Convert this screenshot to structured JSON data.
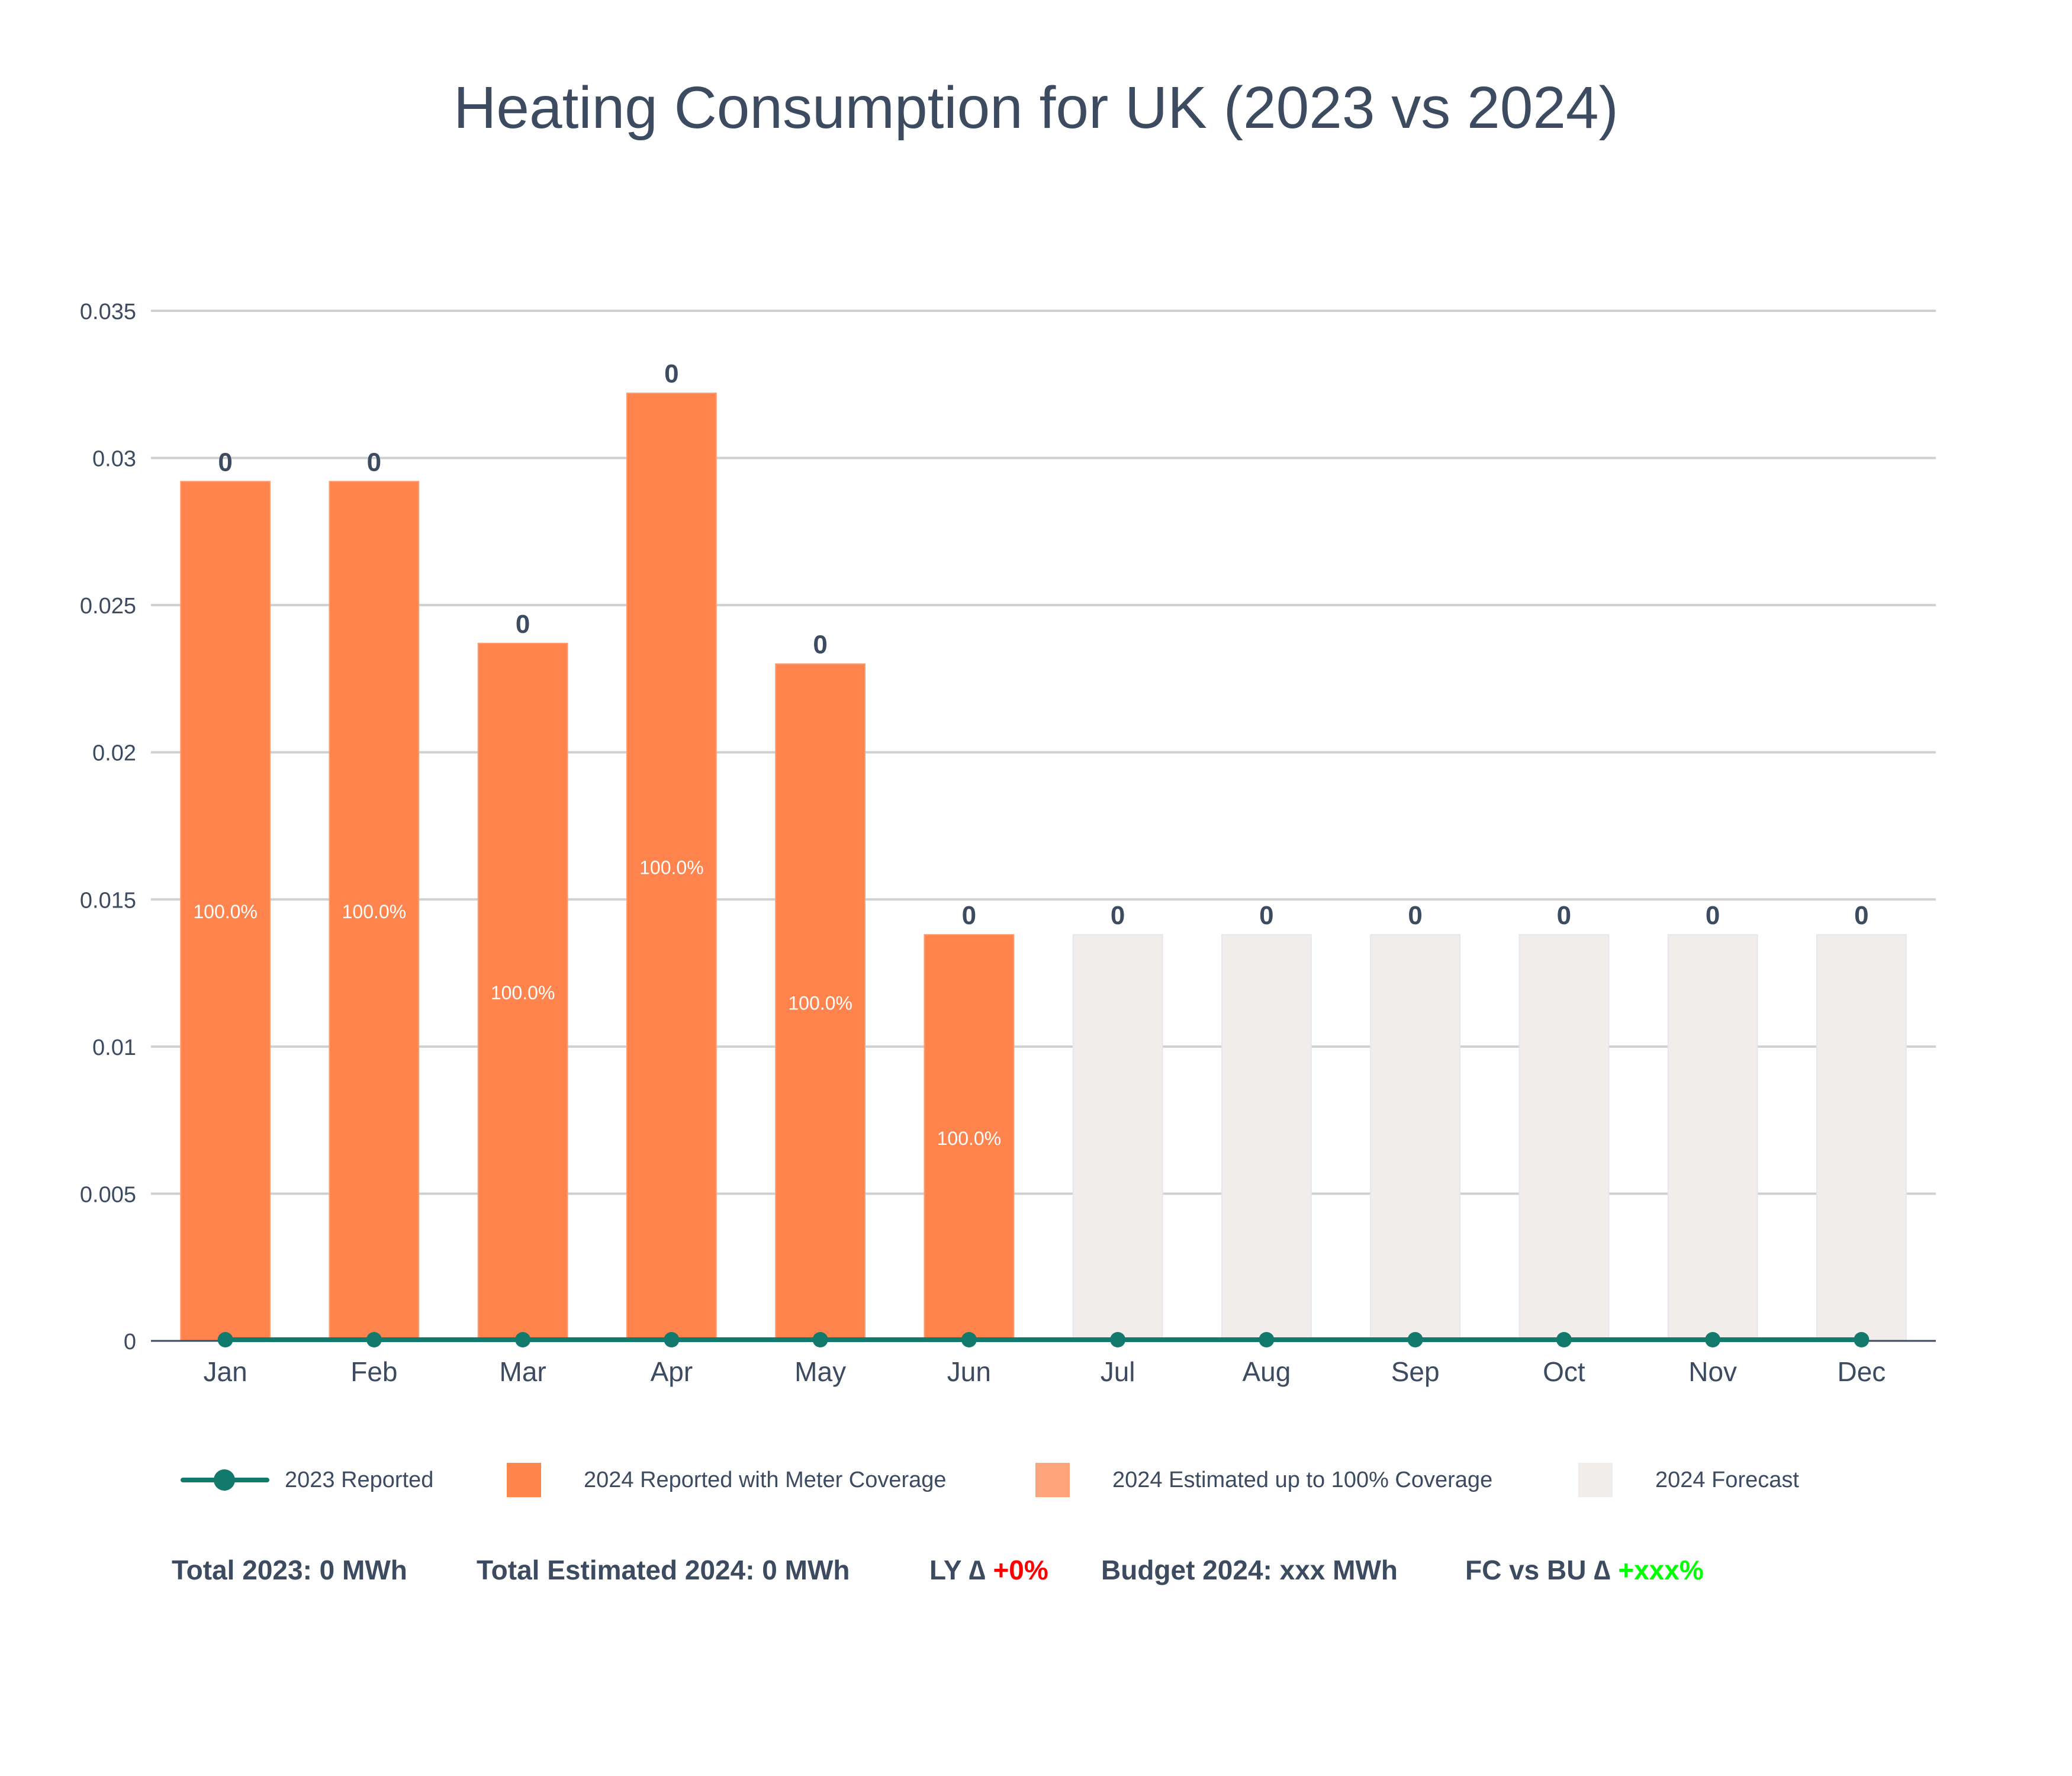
{
  "title": "Heating Consumption for UK (2023 vs 2024)",
  "colors": {
    "reported_2024": "#ff834d",
    "estimated_2024": "#fda47d",
    "forecast_2024": "#f1edea",
    "reported_2023": "#117a6d",
    "axis_text": "#3d4b60",
    "grid": "#d0d0d0",
    "positive": "#ff0000",
    "fc_positive": "#00ff00"
  },
  "chart_data": {
    "type": "bar",
    "title": "Heating Consumption for UK (2023 vs 2024)",
    "xlabel": "",
    "ylabel": "",
    "ylim": [
      0,
      0.035
    ],
    "y_ticks": [
      "0",
      "0.005",
      "0.01",
      "0.015",
      "0.02",
      "0.025",
      "0.03",
      "0.035"
    ],
    "y_tick_values": [
      0,
      0.005,
      0.01,
      0.015,
      0.02,
      0.025,
      0.03,
      0.035
    ],
    "categories": [
      "Jan",
      "Feb",
      "Mar",
      "Apr",
      "May",
      "Jun",
      "Jul",
      "Aug",
      "Sep",
      "Oct",
      "Nov",
      "Dec"
    ],
    "grid": true,
    "legend_position": "bottom",
    "series": [
      {
        "name": "2023 Reported",
        "kind": "line",
        "values": [
          0,
          0,
          0,
          0,
          0,
          0,
          0,
          0,
          0,
          0,
          0,
          0
        ]
      },
      {
        "name": "2024 Reported with Meter Coverage",
        "kind": "bar",
        "values": [
          0.0292,
          0.0292,
          0.0237,
          0.0322,
          0.023,
          0.0138,
          null,
          null,
          null,
          null,
          null,
          null
        ],
        "inner_labels": [
          "100.0%",
          "100.0%",
          "100.0%",
          "100.0%",
          "100.0%",
          "100.0%",
          "",
          "",
          "",
          "",
          "",
          ""
        ]
      },
      {
        "name": "2024 Estimated up to 100% Coverage",
        "kind": "bar",
        "values": [
          null,
          null,
          null,
          null,
          null,
          null,
          null,
          null,
          null,
          null,
          null,
          null
        ]
      },
      {
        "name": "2024 Forecast",
        "kind": "bar",
        "values": [
          null,
          null,
          null,
          null,
          null,
          null,
          0.0138,
          0.0138,
          0.0138,
          0.0138,
          0.0138,
          0.0138
        ]
      }
    ],
    "top_labels": [
      "0",
      "0",
      "0",
      "0",
      "0",
      "0",
      "0",
      "0",
      "0",
      "0",
      "0",
      "0"
    ]
  },
  "summary": {
    "total_2023": "Total 2023: 0 MWh",
    "total_est_2024": "Total Estimated 2024: 0 MWh",
    "ly_label": "LY ∆ ",
    "ly_value": "+0%",
    "budget": "Budget 2024: xxx MWh",
    "fc_label": "FC vs BU ∆ ",
    "fc_value": "+xxx%"
  }
}
